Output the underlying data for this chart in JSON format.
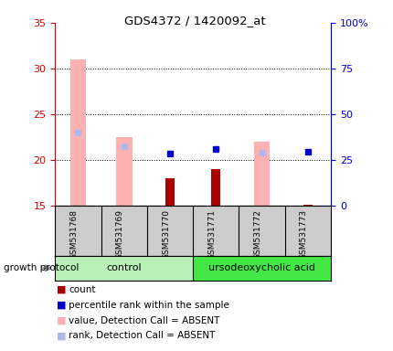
{
  "title": "GDS4372 / 1420092_at",
  "samples": [
    "GSM531768",
    "GSM531769",
    "GSM531770",
    "GSM531771",
    "GSM531772",
    "GSM531773"
  ],
  "group_labels": [
    "control",
    "ursodeoxycholic acid"
  ],
  "group_colors": [
    "#b8f0b8",
    "#44e844"
  ],
  "ylim_left": [
    15,
    35
  ],
  "ylim_right": [
    0,
    100
  ],
  "yticks_left": [
    15,
    20,
    25,
    30,
    35
  ],
  "yticks_right": [
    0,
    25,
    50,
    75,
    100
  ],
  "pink_bar_values": [
    31.0,
    22.5,
    null,
    null,
    22.0,
    null
  ],
  "pink_bar_base": 15,
  "dark_red_bar_values": [
    null,
    null,
    18.0,
    19.0,
    null,
    15.1
  ],
  "dark_red_bar_base": 15,
  "blue_square_values": [
    null,
    null,
    20.7,
    21.2,
    null,
    20.9
  ],
  "light_blue_square_values": [
    23.0,
    21.5,
    null,
    null,
    20.8,
    null
  ],
  "pink_color": "#ffb0b0",
  "light_blue_color": "#b0b8e8",
  "dark_red_color": "#aa0000",
  "blue_color": "#0000cc",
  "legend_labels": [
    "count",
    "percentile rank within the sample",
    "value, Detection Call = ABSENT",
    "rank, Detection Call = ABSENT"
  ],
  "legend_colors": [
    "#aa0000",
    "#0000cc",
    "#ffb0b0",
    "#b0b8e8"
  ],
  "growth_protocol_label": "growth protocol",
  "left_yaxis_color": "#cc0000",
  "right_yaxis_color": "#0000cc",
  "bar_width": 0.35,
  "sample_bg_color": "#cccccc",
  "grid_lines": [
    20,
    25,
    30
  ]
}
